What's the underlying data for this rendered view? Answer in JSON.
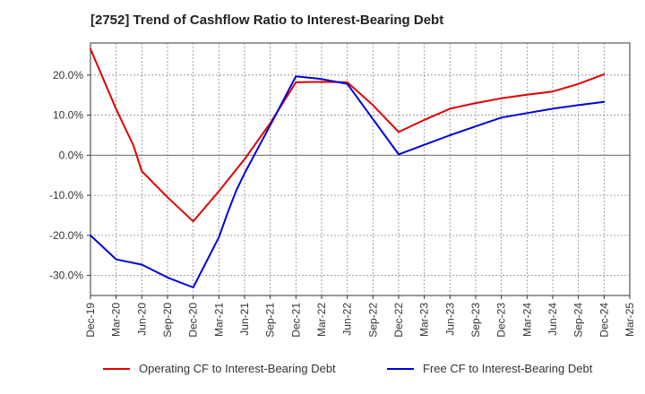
{
  "chart_data": {
    "type": "line",
    "title": "[2752]  Trend of Cashflow Ratio to Interest-Bearing Debt",
    "xlabel": "",
    "ylabel": "",
    "x_ticks": [
      "Dec-19",
      "Mar-20",
      "Jun-20",
      "Sep-20",
      "Dec-20",
      "Mar-21",
      "Jun-21",
      "Sep-21",
      "Dec-21",
      "Mar-22",
      "Jun-22",
      "Sep-22",
      "Dec-22",
      "Mar-23",
      "Jun-23",
      "Sep-23",
      "Dec-23",
      "Mar-24",
      "Jun-24",
      "Sep-24",
      "Dec-24",
      "Mar-25"
    ],
    "y_ticks": [
      -30,
      -20,
      -10,
      0,
      10,
      20
    ],
    "y_tick_labels": [
      "-30.0%",
      "-20.0%",
      "-10.0%",
      "0.0%",
      "10.0%",
      "20.0%"
    ],
    "ylim": [
      -35,
      28
    ],
    "grid": true,
    "legend_position": "bottom",
    "series": [
      {
        "name": "Operating CF to Interest-Bearing Debt",
        "color": "#e00000",
        "points": [
          [
            "Dec-19",
            26.5
          ],
          [
            "Mar-20",
            11.5
          ],
          [
            "Apr-20",
            7.0
          ],
          [
            "May-20",
            2.5
          ],
          [
            "Jun-20",
            -4.0
          ],
          [
            "Sep-20",
            -10.5
          ],
          [
            "Dec-20",
            -16.5
          ],
          [
            "Mar-21",
            -9.0
          ],
          [
            "Jun-21",
            -1.0
          ],
          [
            "Sep-21",
            8.0
          ],
          [
            "Dec-21",
            18.2
          ],
          [
            "Mar-22",
            18.3
          ],
          [
            "Jun-22",
            18.2
          ],
          [
            "Sep-22",
            12.5
          ],
          [
            "Dec-22",
            5.8
          ],
          [
            "Mar-23",
            8.8
          ],
          [
            "Jun-23",
            11.6
          ],
          [
            "Sep-23",
            13.0
          ],
          [
            "Dec-23",
            14.2
          ],
          [
            "Mar-24",
            15.1
          ],
          [
            "Jun-24",
            15.9
          ],
          [
            "Sep-24",
            17.8
          ],
          [
            "Dec-24",
            20.2
          ]
        ]
      },
      {
        "name": "Free CF to Interest-Bearing Debt",
        "color": "#0000dd",
        "points": [
          [
            "Dec-19",
            -20.0
          ],
          [
            "Mar-20",
            -26.0
          ],
          [
            "Jun-20",
            -27.3
          ],
          [
            "Sep-20",
            -30.5
          ],
          [
            "Dec-20",
            -33.0
          ],
          [
            "Mar-21",
            -20.5
          ],
          [
            "Apr-21",
            -14.5
          ],
          [
            "May-21",
            -9.0
          ],
          [
            "Jun-21",
            -4.5
          ],
          [
            "Sep-21",
            7.5
          ],
          [
            "Dec-21",
            19.7
          ],
          [
            "Mar-22",
            19.0
          ],
          [
            "Jun-22",
            17.8
          ],
          [
            "Sep-22",
            9.0
          ],
          [
            "Dec-22",
            0.2
          ],
          [
            "Mar-23",
            2.6
          ],
          [
            "Jun-23",
            5.0
          ],
          [
            "Sep-23",
            7.2
          ],
          [
            "Dec-23",
            9.4
          ],
          [
            "Mar-24",
            10.5
          ],
          [
            "Jun-24",
            11.6
          ],
          [
            "Sep-24",
            12.5
          ],
          [
            "Dec-24",
            13.3
          ]
        ]
      }
    ]
  }
}
